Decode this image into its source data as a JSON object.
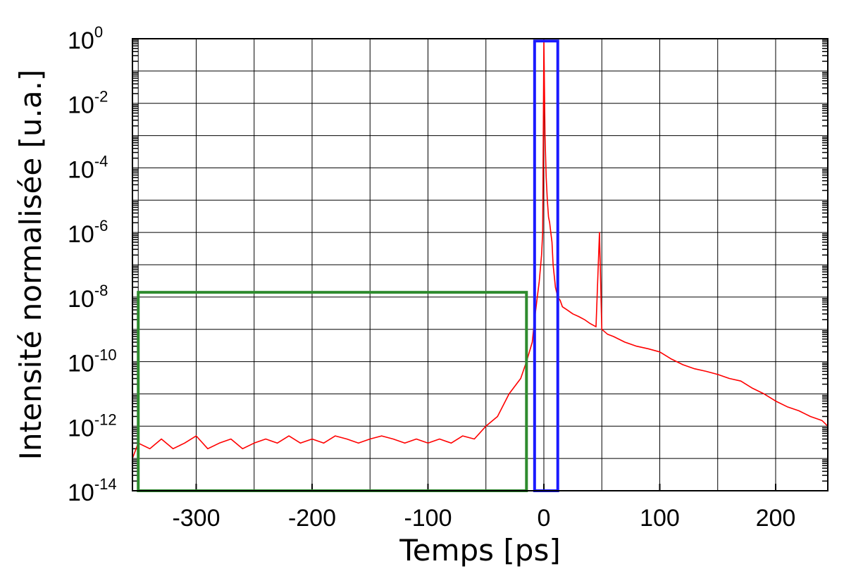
{
  "chart_data": {
    "type": "line",
    "title": "",
    "xlabel": "Temps [ps]",
    "ylabel": "Intensité normalisée [u.a.]",
    "xlim": [
      -355,
      245
    ],
    "ylim": [
      1e-14,
      1
    ],
    "yscale": "log",
    "grid": true,
    "x_ticks": [
      -300,
      -200,
      -100,
      0,
      100,
      200
    ],
    "x_tick_labels": [
      "-300",
      "-200",
      "-100",
      "0",
      "100",
      "200"
    ],
    "y_tick_exponents": [
      0,
      -2,
      -4,
      -6,
      -8,
      -10,
      -12,
      -14
    ],
    "y_tick_base": "10",
    "series": [
      {
        "color": "#ff0000",
        "x": [
          -355,
          -350,
          -340,
          -330,
          -320,
          -310,
          -300,
          -290,
          -280,
          -270,
          -260,
          -250,
          -240,
          -230,
          -220,
          -210,
          -200,
          -190,
          -180,
          -170,
          -160,
          -150,
          -140,
          -130,
          -120,
          -110,
          -100,
          -90,
          -80,
          -70,
          -60,
          -50,
          -40,
          -30,
          -20,
          -15,
          -10,
          -8,
          -6,
          -4,
          -2,
          -1,
          0,
          1,
          2,
          3,
          4,
          5,
          6,
          7,
          8,
          10,
          12,
          14,
          16,
          20,
          25,
          30,
          35,
          40,
          45,
          48,
          50,
          55,
          60,
          70,
          80,
          90,
          100,
          110,
          120,
          130,
          140,
          150,
          160,
          170,
          180,
          190,
          200,
          210,
          220,
          230,
          240,
          245
        ],
        "y": [
          1e-13,
          3e-13,
          2e-13,
          4e-13,
          2e-13,
          3e-13,
          5e-13,
          2e-13,
          3e-13,
          4e-13,
          2e-13,
          3e-13,
          4e-13,
          3e-13,
          5e-13,
          3e-13,
          4e-13,
          3e-13,
          5e-13,
          4e-13,
          3e-13,
          4e-13,
          5e-13,
          4e-13,
          3e-13,
          4e-13,
          3e-13,
          4e-13,
          3e-13,
          5e-13,
          4e-13,
          1e-12,
          2e-12,
          1e-11,
          3e-11,
          1e-10,
          4e-10,
          2e-09,
          8e-09,
          3e-08,
          2e-07,
          1e-06,
          1,
          0.001,
          5e-05,
          1e-05,
          3e-06,
          2e-06,
          1e-06,
          5e-07,
          1e-07,
          2e-08,
          1e-08,
          8e-09,
          5e-09,
          4e-09,
          3e-09,
          2.5e-09,
          2e-09,
          1.5e-09,
          1.2e-09,
          1e-06,
          1e-09,
          7e-10,
          6e-10,
          4e-10,
          3e-10,
          2.5e-10,
          2e-10,
          1.2e-10,
          8e-11,
          6e-11,
          5e-11,
          4e-11,
          3e-11,
          2.5e-11,
          1.5e-11,
          1e-11,
          6e-12,
          4e-12,
          3e-12,
          2e-12,
          1.5e-12,
          1e-12
        ]
      }
    ],
    "highlights": [
      {
        "color": "#2e8b2e",
        "x_range": [
          -350,
          -15
        ],
        "y_range": [
          1e-14,
          1.4e-08
        ]
      },
      {
        "color": "#1a1aff",
        "x_range": [
          -8,
          12
        ],
        "y_range": [
          1e-14,
          0.85
        ]
      }
    ]
  }
}
